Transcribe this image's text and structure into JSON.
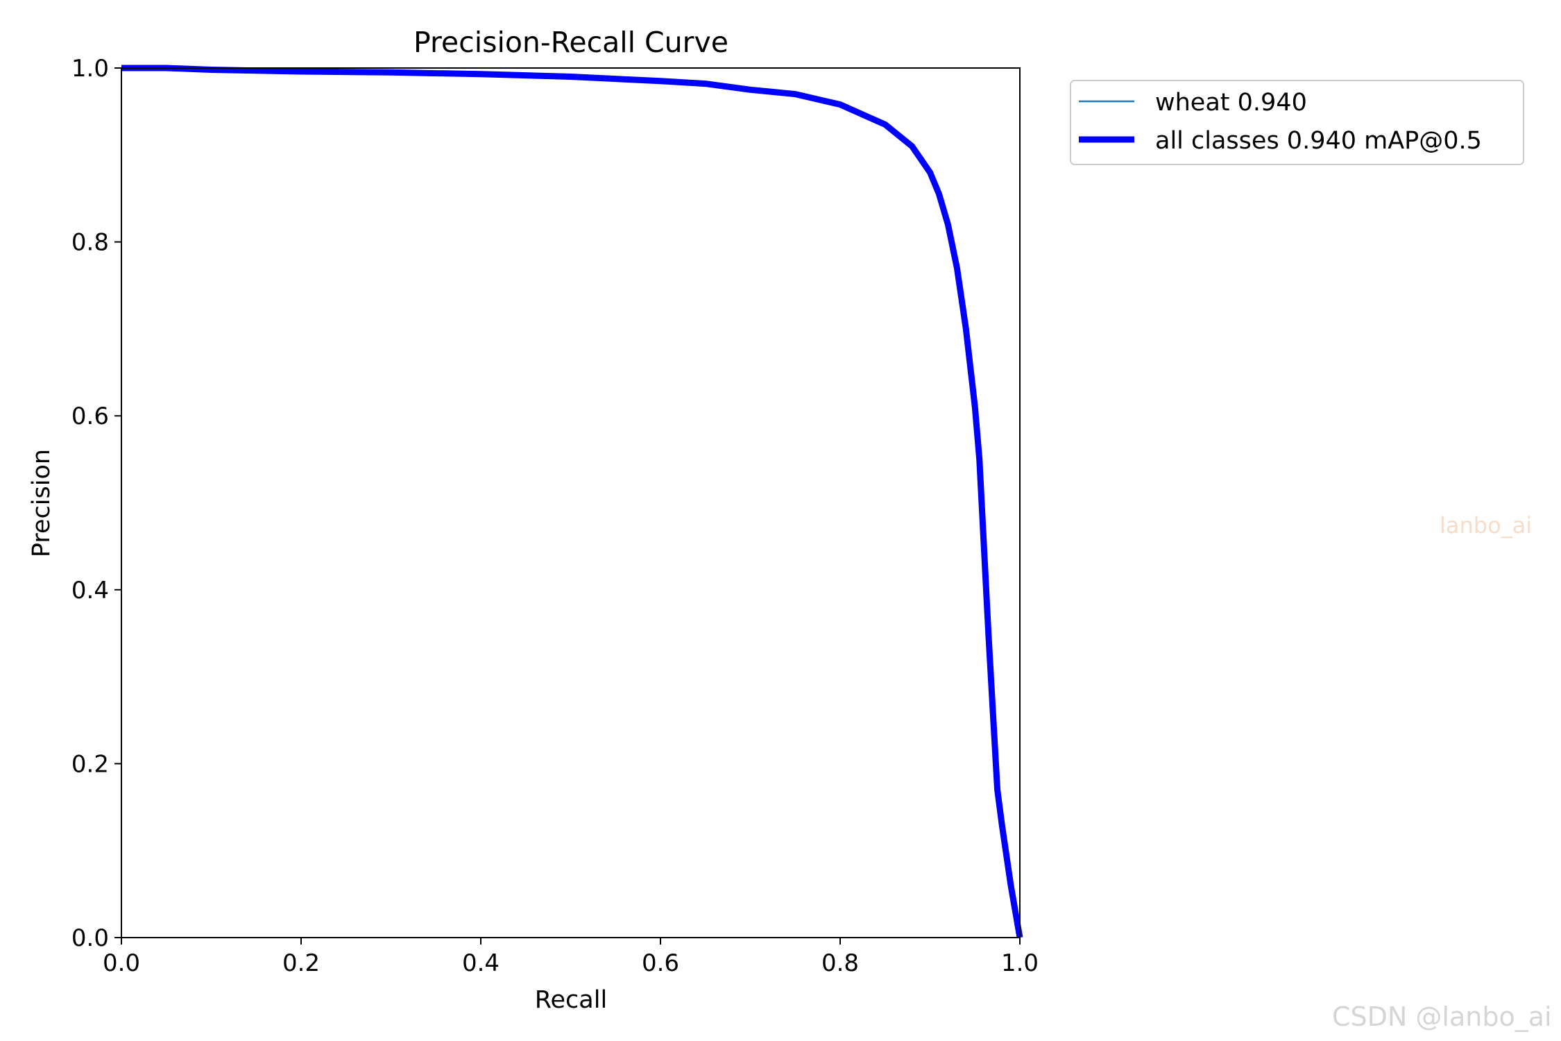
{
  "chart_data": {
    "type": "line",
    "title": "Precision-Recall Curve",
    "xlabel": "Recall",
    "ylabel": "Precision",
    "xlim": [
      0.0,
      1.0
    ],
    "ylim": [
      0.0,
      1.0
    ],
    "xticks": [
      "0.0",
      "0.2",
      "0.4",
      "0.6",
      "0.8",
      "1.0"
    ],
    "yticks": [
      "0.0",
      "0.2",
      "0.4",
      "0.6",
      "0.8",
      "1.0"
    ],
    "grid": false,
    "legend_placement": "outside upper-right",
    "series": [
      {
        "name": "wheat 0.940",
        "color": "#1f77b4",
        "x": [
          0.0,
          0.05,
          0.1,
          0.2,
          0.3,
          0.4,
          0.5,
          0.6,
          0.65,
          0.7,
          0.75,
          0.8,
          0.85,
          0.88,
          0.9,
          0.91,
          0.92,
          0.93,
          0.94,
          0.95,
          0.955,
          0.96,
          0.965,
          0.97,
          0.975,
          0.98,
          0.99,
          1.0
        ],
        "y": [
          1.0,
          1.0,
          0.998,
          0.996,
          0.995,
          0.993,
          0.99,
          0.985,
          0.982,
          0.975,
          0.97,
          0.958,
          0.935,
          0.91,
          0.88,
          0.855,
          0.82,
          0.77,
          0.7,
          0.61,
          0.55,
          0.45,
          0.35,
          0.26,
          0.17,
          0.13,
          0.06,
          0.0
        ]
      },
      {
        "name": "all classes 0.940 mAP@0.5",
        "color": "#0000ff",
        "x": [
          0.0,
          0.05,
          0.1,
          0.2,
          0.3,
          0.4,
          0.5,
          0.6,
          0.65,
          0.7,
          0.75,
          0.8,
          0.85,
          0.88,
          0.9,
          0.91,
          0.92,
          0.93,
          0.94,
          0.95,
          0.955,
          0.96,
          0.965,
          0.97,
          0.975,
          0.98,
          0.99,
          1.0
        ],
        "y": [
          1.0,
          1.0,
          0.998,
          0.996,
          0.995,
          0.993,
          0.99,
          0.985,
          0.982,
          0.975,
          0.97,
          0.958,
          0.935,
          0.91,
          0.88,
          0.855,
          0.82,
          0.77,
          0.7,
          0.61,
          0.55,
          0.45,
          0.35,
          0.26,
          0.17,
          0.13,
          0.06,
          0.0
        ]
      }
    ]
  },
  "watermarks": {
    "faint": "lanbo_ai",
    "footer": "CSDN @lanbo_ai"
  }
}
